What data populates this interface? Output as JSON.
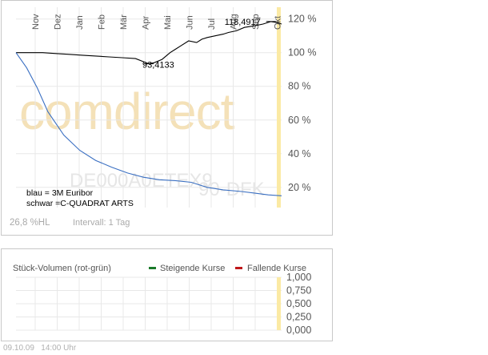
{
  "chart_data": [
    {
      "type": "line",
      "title": "",
      "watermark": "comdirect",
      "overlay_code": "DE000A0ETEX9",
      "overlay_code_suffix": "90-DFK",
      "x_months": [
        "Nov",
        "Dez",
        "Jan",
        "Feb",
        "Mär",
        "Apr",
        "Mai",
        "Jun",
        "Jul",
        "Aug",
        "Sep",
        "Okt"
      ],
      "y_ticks": [
        "120 %",
        "100 %",
        "80 %",
        "60 %",
        "40 %",
        "20 %"
      ],
      "y_tick_values": [
        120,
        100,
        80,
        60,
        40,
        20
      ],
      "ylim": [
        8,
        127
      ],
      "grid": true,
      "series": [
        {
          "name": "C-QUADRAT ARTS",
          "color": "#000000",
          "x": [
            0,
            0.05,
            0.1,
            0.15,
            0.2,
            0.25,
            0.3,
            0.35,
            0.4,
            0.45,
            0.5,
            0.52,
            0.55,
            0.58,
            0.6,
            0.62,
            0.65,
            0.68,
            0.7,
            0.72,
            0.75,
            0.78,
            0.8,
            0.83,
            0.86,
            0.9,
            0.93,
            0.96,
            0.98,
            1.0
          ],
          "values": [
            100,
            100,
            100,
            99.5,
            99,
            98.5,
            98,
            97.5,
            97,
            96.5,
            93.4,
            94,
            96,
            100,
            102,
            104,
            107,
            106,
            108,
            109,
            110,
            111,
            112,
            113,
            115,
            116,
            117,
            118.5,
            118,
            117
          ]
        },
        {
          "name": "3M Euribor",
          "color": "#3a6fc2",
          "x": [
            0,
            0.04,
            0.08,
            0.12,
            0.18,
            0.24,
            0.3,
            0.36,
            0.42,
            0.48,
            0.54,
            0.6,
            0.66,
            0.72,
            0.78,
            0.85,
            0.9,
            0.95,
            1.0
          ],
          "values": [
            100,
            91,
            79,
            65,
            51,
            42,
            36,
            32,
            28.5,
            26,
            24.5,
            24,
            23,
            20,
            18.5,
            17.5,
            16.5,
            15.5,
            15
          ]
        }
      ],
      "annotations": [
        {
          "label": "93,4133",
          "x": 0.5,
          "value": 93.4
        },
        {
          "label": "118,4917",
          "x": 0.96,
          "value": 118.5
        }
      ],
      "legend_placement": "bottom-left",
      "legend": [
        "blau = 3M Euribor",
        "schwar =C-QUADRAT ARTS"
      ],
      "footer_left": "26,8 %HL",
      "footer_right": "Intervall: 1 Tag"
    },
    {
      "type": "bar",
      "title": "Stück-Volumen (rot-grün)",
      "legend": [
        {
          "name": "Steigende Kurse",
          "color": "#1a7a2a"
        },
        {
          "name": "Fallende Kurse",
          "color": "#c0181a"
        }
      ],
      "legend_placement": "top-right",
      "y_ticks": [
        "1,000",
        "0,750",
        "0,500",
        "0,250",
        "0,000"
      ],
      "y_tick_values": [
        1,
        0.75,
        0.5,
        0.25,
        0
      ],
      "ylim": [
        0,
        1
      ],
      "values": []
    }
  ],
  "footer": {
    "date": "09.10.09",
    "time": "14:00 Uhr"
  }
}
